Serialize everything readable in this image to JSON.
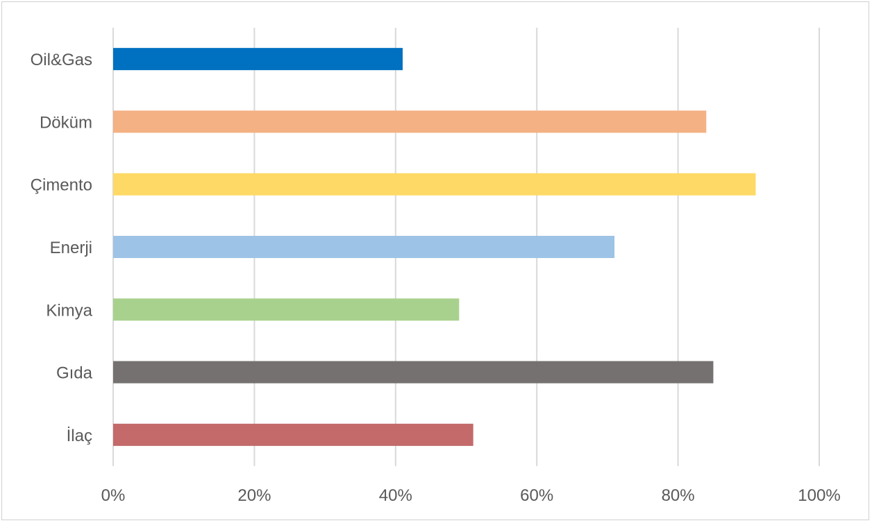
{
  "chart_data": {
    "type": "bar",
    "orientation": "horizontal",
    "title": "",
    "xlabel": "",
    "ylabel": "",
    "categories": [
      "Oil&Gas",
      "Döküm",
      "Çimento",
      "Enerji",
      "Kimya",
      "Gıda",
      "İlaç"
    ],
    "values": [
      0.41,
      0.84,
      0.91,
      0.71,
      0.49,
      0.85,
      0.51
    ],
    "colors": [
      "#0070c0",
      "#f4b183",
      "#ffd966",
      "#9dc3e6",
      "#a9d18e",
      "#767171",
      "#c46a6a"
    ],
    "xlim": [
      0,
      1
    ],
    "x_ticks": [
      0,
      0.2,
      0.4,
      0.6,
      0.8,
      1.0
    ],
    "x_tick_labels": [
      "0%",
      "20%",
      "40%",
      "60%",
      "80%",
      "100%"
    ],
    "grid": "vertical",
    "legend": "none"
  }
}
